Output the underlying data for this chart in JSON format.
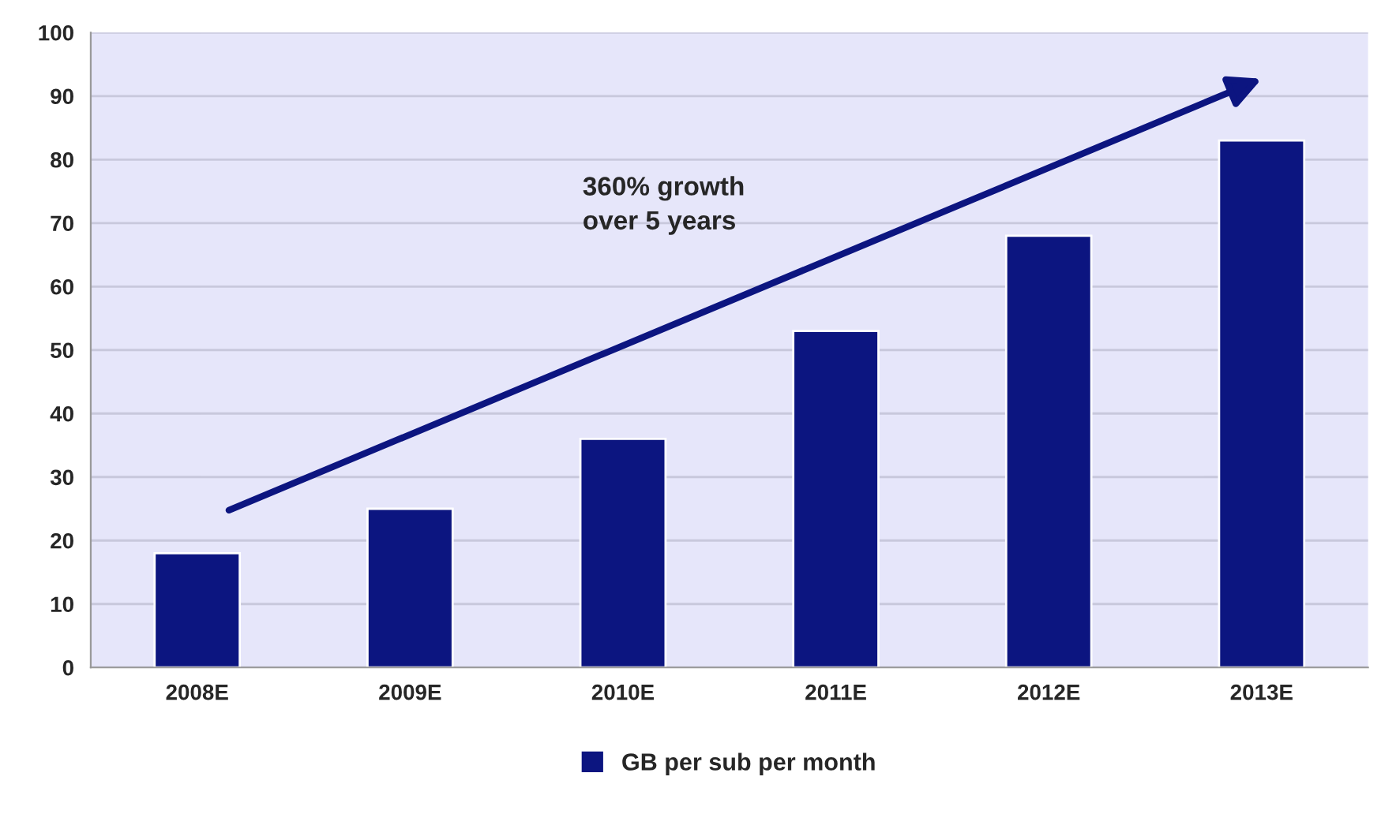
{
  "chart_data": {
    "type": "bar",
    "categories": [
      "2008E",
      "2009E",
      "2010E",
      "2011E",
      "2012E",
      "2013E"
    ],
    "series": [
      {
        "name": "GB per sub per month",
        "color": "#0c1580",
        "values": [
          18,
          25,
          36,
          53,
          68,
          83
        ]
      }
    ],
    "ylim": [
      0,
      100
    ],
    "yticks": [
      0,
      10,
      20,
      30,
      40,
      50,
      60,
      70,
      80,
      90,
      100
    ],
    "grid": "y",
    "legend": "bottom",
    "annotations": [
      "360% growth\nover 5 years"
    ]
  }
}
